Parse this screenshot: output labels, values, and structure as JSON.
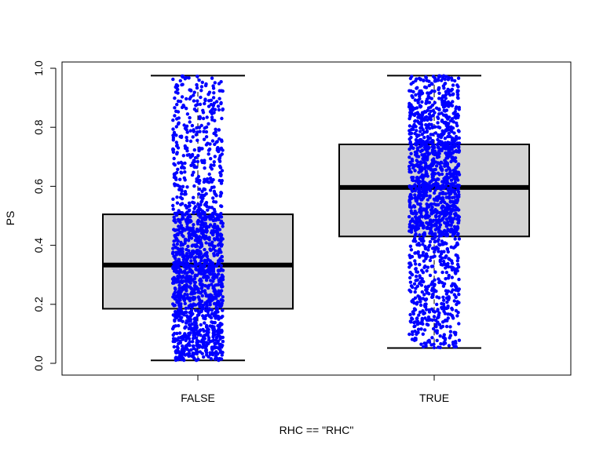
{
  "chart_data": {
    "type": "boxplot",
    "title": "",
    "xlabel": "RHC == \"RHC\"",
    "ylabel": "PS",
    "ylim": [
      0,
      1
    ],
    "yticks": [
      "0.0",
      "0.2",
      "0.4",
      "0.6",
      "0.8",
      "1.0"
    ],
    "categories": [
      "FALSE",
      "TRUE"
    ],
    "boxes": [
      {
        "label": "FALSE",
        "min": 0.01,
        "q1": 0.185,
        "median": 0.333,
        "q3": 0.505,
        "max": 0.975
      },
      {
        "label": "TRUE",
        "min": 0.052,
        "q1": 0.43,
        "median": 0.596,
        "q3": 0.742,
        "max": 0.975
      }
    ],
    "points_overlay": "jittered-points",
    "colors": {
      "box_fill": "#d3d3d3",
      "points": "#0000ff",
      "median": "#000000"
    }
  }
}
